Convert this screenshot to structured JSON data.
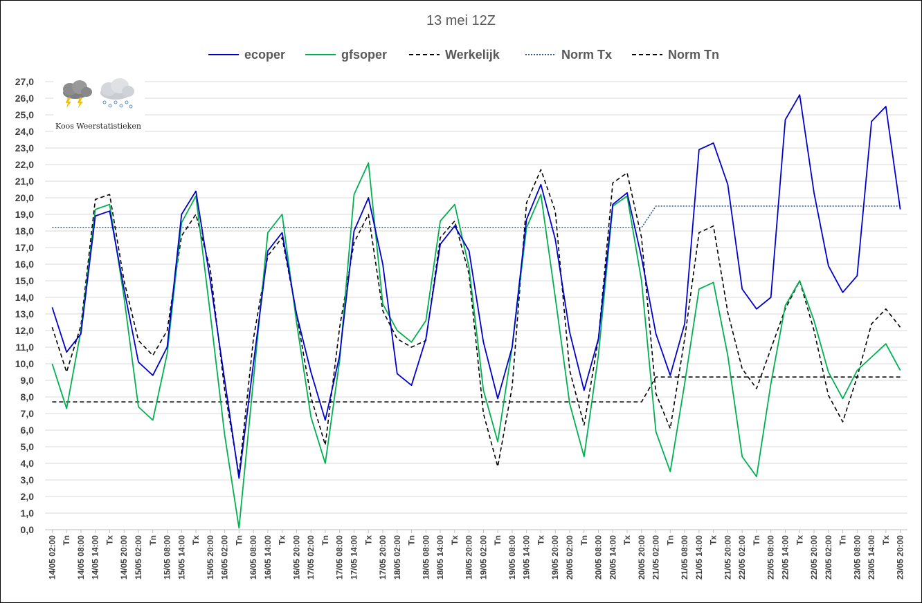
{
  "chart_data": {
    "type": "line",
    "title": "13 mei 12Z",
    "xlabel": "",
    "ylabel": "",
    "ylim": [
      0,
      27
    ],
    "ytick_step": 1,
    "grid": true,
    "legend_position": "top",
    "watermark": {
      "text": "Koos Weerstatistieken"
    },
    "categories": [
      "14/05 02:00",
      "Tn",
      "14/05 08:00",
      "14/05 14:00",
      "Tx",
      "14/05 20:00",
      "15/05 02:00",
      "Tn",
      "15/05 08:00",
      "15/05 14:00",
      "Tx",
      "15/05 20:00",
      "16/05 02:00",
      "Tn",
      "16/05 08:00",
      "16/05 14:00",
      "Tx",
      "16/05 20:00",
      "17/05 02:00",
      "Tn",
      "17/05 08:00",
      "17/05 14:00",
      "Tx",
      "17/05 20:00",
      "18/05 02:00",
      "Tn",
      "18/05 08:00",
      "18/05 14:00",
      "Tx",
      "18/05 20:00",
      "19/05 02:00",
      "Tn",
      "19/05 08:00",
      "19/05 14:00",
      "Tx",
      "19/05 20:00",
      "20/05 02:00",
      "Tn",
      "20/05 08:00",
      "20/05 14:00",
      "Tx",
      "20/05 20:00",
      "21/05 02:00",
      "Tn",
      "21/05 08:00",
      "21/05 14:00",
      "Tx",
      "21/05 20:00",
      "22/05 02:00",
      "Tn",
      "22/05 08:00",
      "22/05 14:00",
      "Tx",
      "22/05 20:00",
      "23/05 02:00",
      "Tn",
      "23/05 08:00",
      "23/05 14:00",
      "Tx",
      "23/05 20:00"
    ],
    "series": [
      {
        "name": "ecoper",
        "color": "#0000cc",
        "style": "solid",
        "values": [
          13.4,
          10.7,
          11.8,
          18.9,
          19.2,
          14.5,
          10.1,
          9.3,
          11.0,
          19.0,
          20.4,
          15.0,
          9.0,
          3.1,
          10.0,
          16.8,
          17.9,
          13.0,
          9.5,
          6.6,
          10.5,
          18.0,
          20.0,
          16.0,
          9.4,
          8.7,
          11.5,
          17.2,
          18.3,
          16.8,
          11.3,
          7.9,
          11.0,
          18.7,
          20.8,
          17.5,
          11.9,
          8.4,
          11.5,
          19.6,
          20.3,
          16.4,
          11.8,
          9.3,
          12.4,
          22.9,
          23.3,
          20.8,
          14.5,
          13.3,
          14.0,
          24.7,
          26.2,
          20.3,
          15.9,
          14.3,
          15.3,
          24.6,
          25.5,
          19.3
        ]
      },
      {
        "name": "gfsoper",
        "color": "#00b050",
        "style": "solid",
        "values": [
          10.0,
          7.3,
          12.0,
          19.3,
          19.6,
          14.0,
          7.4,
          6.6,
          10.6,
          18.5,
          20.1,
          13.0,
          5.7,
          0.1,
          9.0,
          17.9,
          19.0,
          12.5,
          6.8,
          4.0,
          10.2,
          20.2,
          22.1,
          13.6,
          12.0,
          11.3,
          12.6,
          18.6,
          19.6,
          15.8,
          8.4,
          5.3,
          11.0,
          18.2,
          20.2,
          14.0,
          7.6,
          4.4,
          10.5,
          19.5,
          20.1,
          15.0,
          5.9,
          3.5,
          8.8,
          14.5,
          14.9,
          10.5,
          4.4,
          3.2,
          8.8,
          13.5,
          15.0,
          12.6,
          9.5,
          7.9,
          9.6,
          10.4,
          11.2,
          9.6
        ]
      },
      {
        "name": "Werkelijk",
        "color": "#000000",
        "style": "dashed",
        "values": [
          12.2,
          9.5,
          12.3,
          19.9,
          20.2,
          15.0,
          11.4,
          10.5,
          12.0,
          17.7,
          19.0,
          15.7,
          8.4,
          3.3,
          11.5,
          16.5,
          17.6,
          13.0,
          8.0,
          5.1,
          12.2,
          17.3,
          19.0,
          13.2,
          11.5,
          11.0,
          11.4,
          17.6,
          18.6,
          15.4,
          7.0,
          3.8,
          8.6,
          19.7,
          21.7,
          19.2,
          9.6,
          6.3,
          11.5,
          20.9,
          21.5,
          17.6,
          8.2,
          6.1,
          11.5,
          17.9,
          18.3,
          13.1,
          9.7,
          8.5,
          10.9,
          13.3,
          15.0,
          12.0,
          8.1,
          6.5,
          9.2,
          12.4,
          13.3,
          12.2
        ]
      },
      {
        "name": "Norm Tx",
        "color": "#2f5597",
        "style": "dotted",
        "values": [
          18.2,
          18.2,
          18.2,
          18.2,
          18.2,
          18.2,
          18.2,
          18.2,
          18.2,
          18.2,
          18.2,
          18.2,
          18.2,
          18.2,
          18.2,
          18.2,
          18.2,
          18.2,
          18.2,
          18.2,
          18.2,
          18.2,
          18.2,
          18.2,
          18.2,
          18.2,
          18.2,
          18.2,
          18.2,
          18.2,
          18.2,
          18.2,
          18.2,
          18.2,
          18.2,
          18.2,
          18.2,
          18.2,
          18.2,
          18.2,
          18.2,
          18.2,
          19.5,
          19.5,
          19.5,
          19.5,
          19.5,
          19.5,
          19.5,
          19.5,
          19.5,
          19.5,
          19.5,
          19.5,
          19.5,
          19.5,
          19.5,
          19.5,
          19.5,
          19.5
        ]
      },
      {
        "name": "Norm Tn",
        "color": "#000000",
        "style": "dashed",
        "values": [
          7.7,
          7.7,
          7.7,
          7.7,
          7.7,
          7.7,
          7.7,
          7.7,
          7.7,
          7.7,
          7.7,
          7.7,
          7.7,
          7.7,
          7.7,
          7.7,
          7.7,
          7.7,
          7.7,
          7.7,
          7.7,
          7.7,
          7.7,
          7.7,
          7.7,
          7.7,
          7.7,
          7.7,
          7.7,
          7.7,
          7.7,
          7.7,
          7.7,
          7.7,
          7.7,
          7.7,
          7.7,
          7.7,
          7.7,
          7.7,
          7.7,
          7.7,
          9.2,
          9.2,
          9.2,
          9.2,
          9.2,
          9.2,
          9.2,
          9.2,
          9.2,
          9.2,
          9.2,
          9.2,
          9.2,
          9.2,
          9.2,
          9.2,
          9.2,
          9.2
        ]
      }
    ]
  }
}
